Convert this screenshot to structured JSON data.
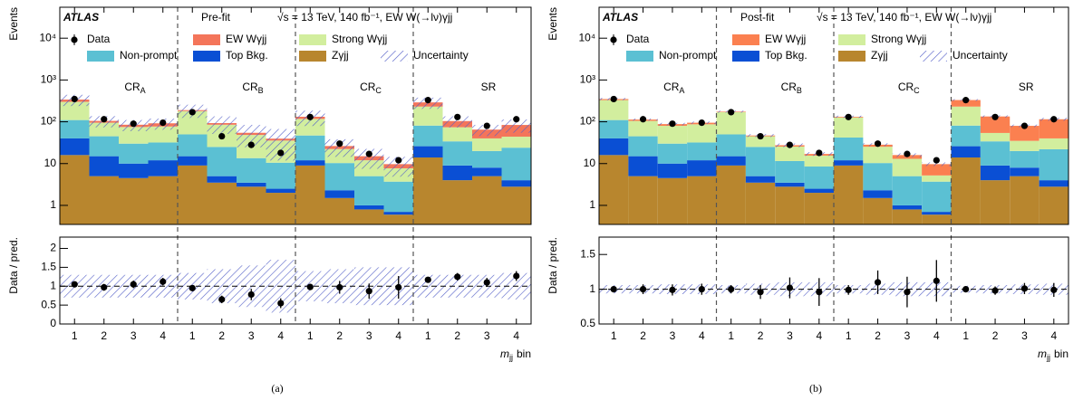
{
  "chart_data": [
    {
      "type": "stacked-histogram",
      "experiment": "ATLAS",
      "fit_label": "Pre-fit",
      "subtitle": "√s = 13 TeV, 140 fb⁻¹, EW W(→lν)γjj",
      "caption": "(a)",
      "ylabel": "Events",
      "log_scale": true,
      "ylim": [
        0.35,
        55000
      ],
      "yticks": [
        1,
        10,
        {
          "value": 100,
          "label": "10²"
        },
        {
          "value": 1000,
          "label": "10³"
        },
        {
          "value": 10000,
          "label": "10⁴"
        }
      ],
      "xlabel": {
        "symbol": "m",
        "subscript": "jj",
        "text": "bin"
      },
      "categories": [
        "1",
        "2",
        "3",
        "4",
        "1",
        "2",
        "3",
        "4",
        "1",
        "2",
        "3",
        "4",
        "1",
        "2",
        "3",
        "4"
      ],
      "regions": [
        {
          "name": "CR",
          "sub": "A"
        },
        {
          "name": "CR",
          "sub": "B"
        },
        {
          "name": "CR",
          "sub": "C"
        },
        {
          "name": "SR"
        }
      ],
      "series": [
        {
          "name": "Zγjj",
          "color": "#b8862e",
          "values": [
            16,
            5,
            4.5,
            5,
            9,
            3.5,
            2.8,
            2,
            9,
            1.5,
            0.8,
            0.6,
            14,
            4,
            5,
            2.8
          ]
        },
        {
          "name": "Top Bkg.",
          "color": "#0a4fd4",
          "values": [
            24,
            10,
            5.5,
            7,
            6,
            1.5,
            0.7,
            0.5,
            3,
            0.8,
            0.2,
            0.1,
            12,
            5,
            3,
            1.2
          ]
        },
        {
          "name": "Non-prompt",
          "color": "#5bc0d3",
          "values": [
            70,
            30,
            20,
            20,
            35,
            20,
            10,
            8,
            35,
            8,
            4,
            3,
            55,
            25,
            12,
            20
          ]
        },
        {
          "name": "Strong Wγjj",
          "color": "#d2ee9e",
          "values": [
            190,
            50,
            45,
            45,
            130,
            60,
            35,
            25,
            70,
            12,
            7,
            4,
            150,
            40,
            20,
            20
          ]
        },
        {
          "name": "EW Wγjj",
          "color": "#f4755a",
          "values": [
            40,
            10,
            10,
            15,
            10,
            8,
            6,
            4,
            15,
            4,
            3,
            2,
            60,
            30,
            25,
            40
          ]
        }
      ],
      "data": {
        "name": "Data",
        "color": "#000000",
        "values": [
          350,
          115,
          90,
          95,
          170,
          45,
          28,
          18,
          130,
          30,
          17,
          12,
          330,
          130,
          80,
          115
        ]
      },
      "uncertainty": {
        "name": "Uncertainty",
        "color": "#5560c8",
        "values": [
          0.3,
          0.3,
          0.3,
          0.3,
          0.35,
          0.45,
          0.55,
          0.7,
          0.4,
          0.45,
          0.5,
          0.5,
          0.3,
          0.3,
          0.3,
          0.35
        ]
      },
      "ratio": {
        "ylabel": "Data / pred.",
        "ylim": [
          0,
          2.3
        ],
        "yticks": [
          0,
          0.5,
          1,
          1.5,
          2
        ],
        "values": [
          1.05,
          0.97,
          1.05,
          1.12,
          0.95,
          0.65,
          0.78,
          0.55,
          0.98,
          0.97,
          0.87,
          0.97,
          1.17,
          1.25,
          1.1,
          1.27
        ],
        "errors": [
          0.05,
          0.09,
          0.1,
          0.1,
          0.07,
          0.1,
          0.15,
          0.13,
          0.08,
          0.17,
          0.2,
          0.3,
          0.06,
          0.1,
          0.12,
          0.13
        ]
      }
    },
    {
      "type": "stacked-histogram",
      "experiment": "ATLAS",
      "fit_label": "Post-fit",
      "subtitle": "√s = 13 TeV, 140 fb⁻¹, EW W(→lν)γjj",
      "caption": "(b)",
      "ylabel": "Events",
      "log_scale": true,
      "ylim": [
        0.35,
        55000
      ],
      "yticks": [
        1,
        10,
        {
          "value": 100,
          "label": "10²"
        },
        {
          "value": 1000,
          "label": "10³"
        },
        {
          "value": 10000,
          "label": "10⁴"
        }
      ],
      "xlabel": {
        "symbol": "m",
        "subscript": "jj",
        "text": "bin"
      },
      "categories": [
        "1",
        "2",
        "3",
        "4",
        "1",
        "2",
        "3",
        "4",
        "1",
        "2",
        "3",
        "4",
        "1",
        "2",
        "3",
        "4"
      ],
      "regions": [
        {
          "name": "CR",
          "sub": "A"
        },
        {
          "name": "CR",
          "sub": "B"
        },
        {
          "name": "CR",
          "sub": "C"
        },
        {
          "name": "SR"
        }
      ],
      "series": [
        {
          "name": "Zγjj",
          "color": "#b8862e",
          "values": [
            16,
            5,
            4.5,
            5,
            9,
            3.5,
            2.8,
            2,
            9,
            1.5,
            0.8,
            0.6,
            14,
            4,
            5,
            2.8
          ]
        },
        {
          "name": "Top Bkg.",
          "color": "#0a4fd4",
          "values": [
            24,
            10,
            5.5,
            7,
            6,
            1.5,
            0.7,
            0.5,
            3,
            0.8,
            0.2,
            0.1,
            12,
            5,
            3,
            1.2
          ]
        },
        {
          "name": "Non-prompt",
          "color": "#5bc0d3",
          "values": [
            70,
            30,
            20,
            20,
            35,
            20,
            8,
            6,
            30,
            8,
            4,
            3,
            55,
            25,
            12,
            18
          ]
        },
        {
          "name": "Strong Wγjj",
          "color": "#d2ee9e",
          "values": [
            220,
            60,
            50,
            55,
            120,
            20,
            14,
            7,
            85,
            15,
            8,
            1.5,
            150,
            20,
            15,
            18
          ]
        },
        {
          "name": "EW Wγjj",
          "color": "#fb8050",
          "values": [
            20,
            8,
            8,
            8,
            5,
            2,
            2,
            1.5,
            5,
            3,
            3,
            4.5,
            100,
            80,
            45,
            75
          ]
        }
      ],
      "data": {
        "name": "Data",
        "color": "#000000",
        "values": [
          350,
          115,
          90,
          95,
          170,
          45,
          28,
          18,
          130,
          30,
          17,
          12,
          330,
          130,
          80,
          115
        ]
      },
      "uncertainty": {
        "name": "Uncertainty",
        "color": "#5560c8",
        "values": [
          0.06,
          0.06,
          0.07,
          0.07,
          0.06,
          0.08,
          0.1,
          0.1,
          0.06,
          0.08,
          0.1,
          0.1,
          0.05,
          0.06,
          0.07,
          0.08
        ]
      },
      "ratio": {
        "ylabel": "Data / pred.",
        "ylim": [
          0.5,
          1.75
        ],
        "yticks": [
          0.5,
          1,
          1.5
        ],
        "values": [
          1.0,
          1.0,
          0.99,
          1.0,
          1.0,
          0.96,
          1.02,
          0.96,
          0.99,
          1.1,
          0.96,
          1.12,
          1.0,
          0.98,
          1.01,
          0.99
        ],
        "errors": [
          0.04,
          0.07,
          0.08,
          0.08,
          0.06,
          0.1,
          0.15,
          0.2,
          0.07,
          0.17,
          0.22,
          0.3,
          0.04,
          0.06,
          0.08,
          0.1
        ]
      }
    }
  ]
}
